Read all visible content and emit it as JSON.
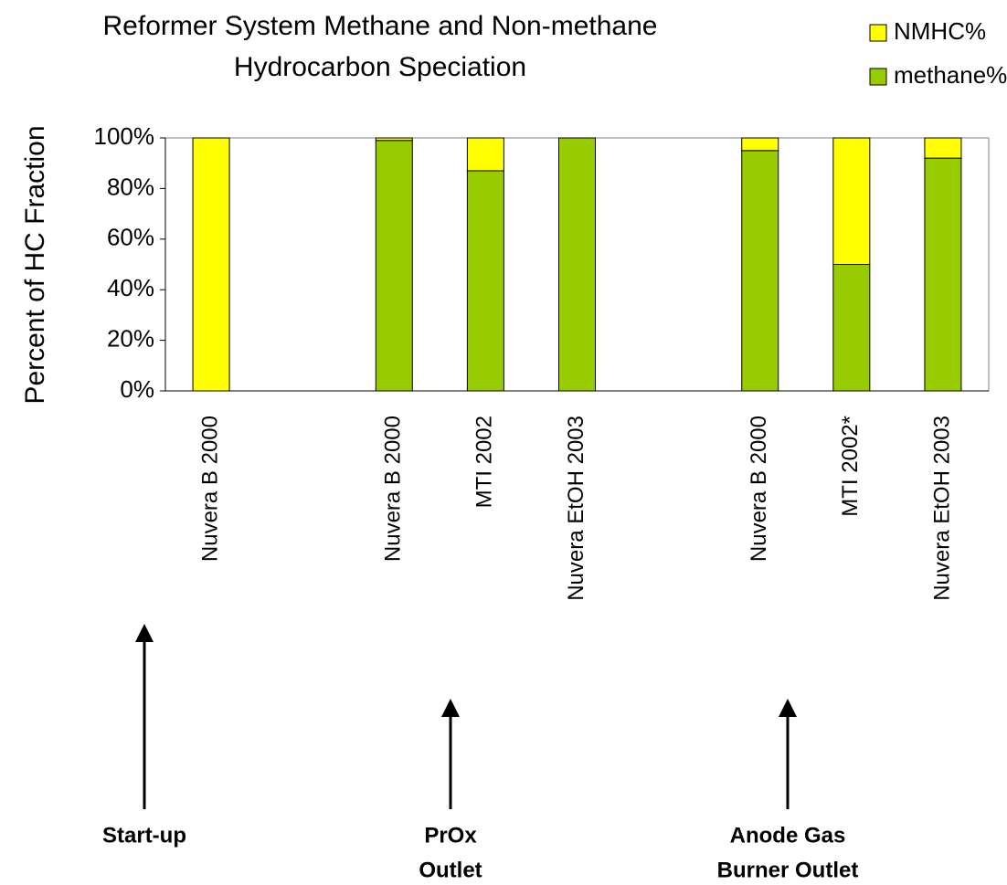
{
  "chart_data": {
    "type": "stacked_bar",
    "title": [
      "Reformer System Methane and Non-methane",
      "Hydrocarbon Speciation"
    ],
    "y_label": "Percent of HC Fraction",
    "categories": [
      "Nuvera B 2000",
      null,
      "Nuvera B 2000",
      "MTI 2002",
      "Nuvera EtOH 2003",
      null,
      "Nuvera B 2000",
      "MTI 2002*",
      "Nuvera EtOH 2003"
    ],
    "series": [
      {
        "name": "methane%",
        "color": "#99cc00",
        "values": [
          0,
          null,
          99,
          87,
          100,
          null,
          95,
          50,
          92
        ]
      },
      {
        "name": "NMHC%",
        "color": "#ffff00",
        "values": [
          100,
          null,
          1,
          13,
          0,
          null,
          5,
          50,
          8
        ]
      }
    ],
    "ylim": [
      0,
      100
    ],
    "yticks": [
      {
        "value": 0,
        "label": "0%"
      },
      {
        "value": 20,
        "label": "20%"
      },
      {
        "value": 40,
        "label": "40%"
      },
      {
        "value": 60,
        "label": "60%"
      },
      {
        "value": 80,
        "label": "80%"
      },
      {
        "value": 100,
        "label": "100%"
      }
    ],
    "legend": "top-right",
    "annotations": [
      [
        "Start-up"
      ],
      [
        "PrOx",
        "Outlet"
      ],
      [
        "Anode  Gas",
        "Burner Outlet"
      ]
    ]
  }
}
